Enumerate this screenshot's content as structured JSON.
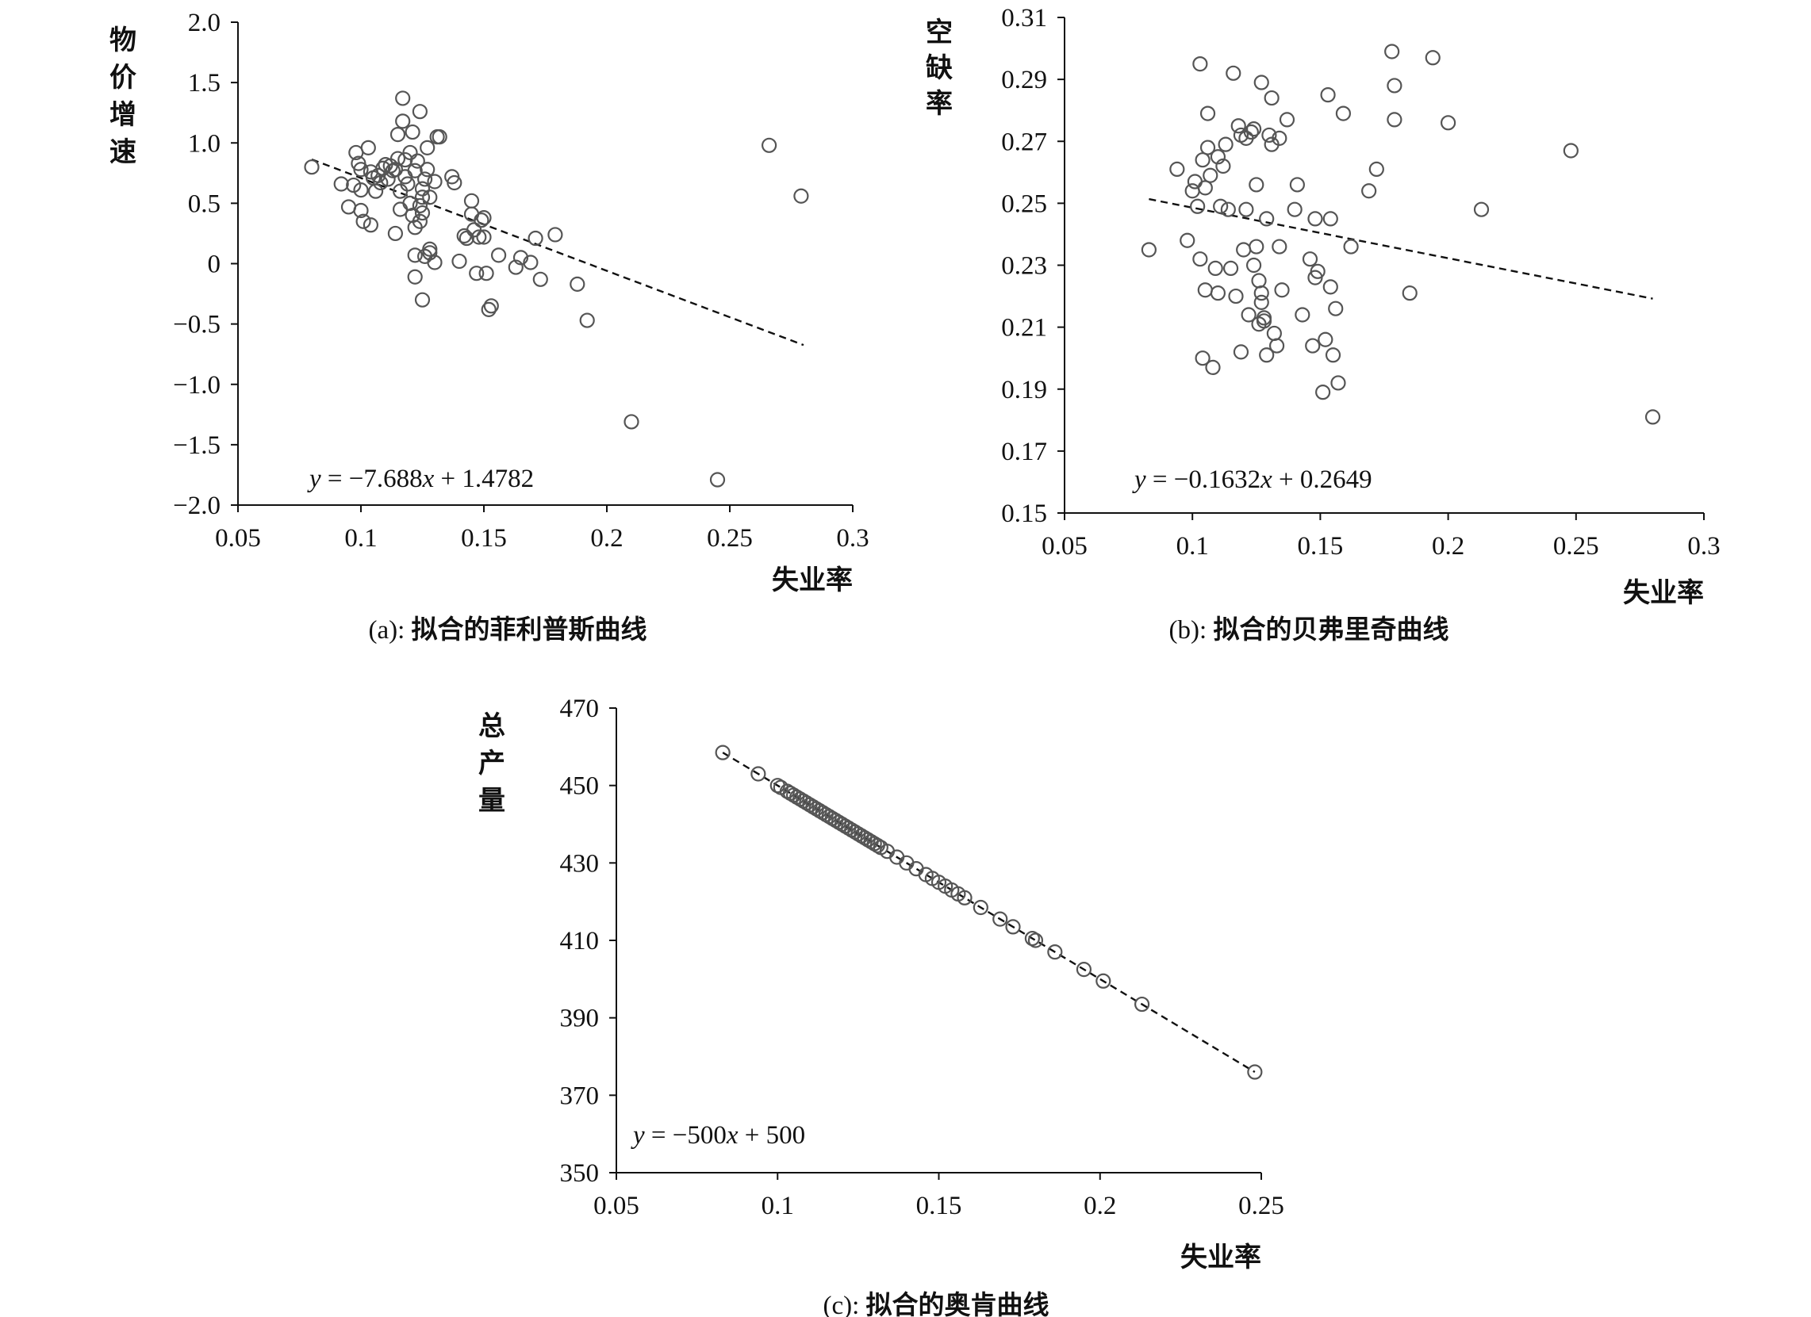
{
  "chart_data": [
    {
      "id": "a",
      "type": "scatter",
      "caption_prefix": "(a): ",
      "caption_title": "拟合的菲利普斯曲线",
      "xlabel": "失业率",
      "ylabel": "物价增速",
      "xlim": [
        0.05,
        0.3
      ],
      "ylim": [
        -2.0,
        2.0
      ],
      "xticks": [
        0.05,
        0.1,
        0.15,
        0.2,
        0.25,
        0.3
      ],
      "xtick_labels": [
        "0.05",
        "0.1",
        "0.15",
        "0.2",
        "0.25",
        "0.3"
      ],
      "yticks": [
        2.0,
        1.5,
        1.0,
        0.5,
        0,
        -0.5,
        -1.0,
        -1.5,
        -2.0
      ],
      "ytick_labels": [
        "2.0",
        "1.5",
        "1.0",
        "0.5",
        "0",
        "−0.5",
        "−1.0",
        "−1.5",
        "−2.0"
      ],
      "trendline": {
        "slope": -7.688,
        "intercept": 1.4782,
        "x_range": [
          0.08,
          0.28
        ]
      },
      "equation": {
        "y": "y",
        "mid": " = −7.688",
        "x": "x",
        "rest": " + 1.4782"
      },
      "points": [
        [
          0.08,
          0.8
        ],
        [
          0.092,
          0.66
        ],
        [
          0.095,
          0.47
        ],
        [
          0.097,
          0.65
        ],
        [
          0.098,
          0.92
        ],
        [
          0.099,
          0.83
        ],
        [
          0.1,
          0.78
        ],
        [
          0.1,
          0.61
        ],
        [
          0.1,
          0.44
        ],
        [
          0.101,
          0.35
        ],
        [
          0.103,
          0.96
        ],
        [
          0.104,
          0.76
        ],
        [
          0.104,
          0.32
        ],
        [
          0.105,
          0.71
        ],
        [
          0.106,
          0.6
        ],
        [
          0.107,
          0.73
        ],
        [
          0.108,
          0.67
        ],
        [
          0.109,
          0.79
        ],
        [
          0.11,
          0.82
        ],
        [
          0.111,
          0.7
        ],
        [
          0.112,
          0.81
        ],
        [
          0.113,
          0.77
        ],
        [
          0.114,
          0.78
        ],
        [
          0.114,
          0.25
        ],
        [
          0.115,
          0.87
        ],
        [
          0.115,
          1.07
        ],
        [
          0.116,
          0.6
        ],
        [
          0.116,
          0.45
        ],
        [
          0.117,
          1.18
        ],
        [
          0.117,
          1.37
        ],
        [
          0.118,
          0.86
        ],
        [
          0.118,
          0.72
        ],
        [
          0.119,
          0.66
        ],
        [
          0.12,
          0.92
        ],
        [
          0.12,
          0.5
        ],
        [
          0.121,
          0.4
        ],
        [
          0.121,
          1.09
        ],
        [
          0.122,
          0.77
        ],
        [
          0.122,
          0.3
        ],
        [
          0.122,
          0.07
        ],
        [
          0.122,
          -0.11
        ],
        [
          0.123,
          0.85
        ],
        [
          0.124,
          0.48
        ],
        [
          0.124,
          0.35
        ],
        [
          0.124,
          1.26
        ],
        [
          0.125,
          0.62
        ],
        [
          0.125,
          0.55
        ],
        [
          0.125,
          0.42
        ],
        [
          0.125,
          -0.3
        ],
        [
          0.126,
          0.06
        ],
        [
          0.126,
          0.7
        ],
        [
          0.127,
          0.78
        ],
        [
          0.127,
          0.96
        ],
        [
          0.128,
          0.55
        ],
        [
          0.128,
          0.12
        ],
        [
          0.128,
          0.09
        ],
        [
          0.13,
          0.01
        ],
        [
          0.13,
          0.68
        ],
        [
          0.131,
          1.05
        ],
        [
          0.132,
          1.05
        ],
        [
          0.137,
          0.72
        ],
        [
          0.138,
          0.67
        ],
        [
          0.14,
          0.02
        ],
        [
          0.142,
          0.23
        ],
        [
          0.143,
          0.21
        ],
        [
          0.145,
          0.52
        ],
        [
          0.145,
          0.41
        ],
        [
          0.146,
          0.28
        ],
        [
          0.147,
          -0.08
        ],
        [
          0.148,
          0.22
        ],
        [
          0.149,
          0.36
        ],
        [
          0.15,
          0.38
        ],
        [
          0.15,
          0.22
        ],
        [
          0.151,
          -0.08
        ],
        [
          0.152,
          -0.38
        ],
        [
          0.153,
          -0.35
        ],
        [
          0.156,
          0.07
        ],
        [
          0.163,
          -0.03
        ],
        [
          0.165,
          0.05
        ],
        [
          0.169,
          0.01
        ],
        [
          0.171,
          0.21
        ],
        [
          0.173,
          -0.13
        ],
        [
          0.179,
          0.24
        ],
        [
          0.188,
          -0.17
        ],
        [
          0.192,
          -0.47
        ],
        [
          0.21,
          -1.31
        ],
        [
          0.245,
          -1.79
        ],
        [
          0.266,
          0.98
        ],
        [
          0.279,
          0.56
        ]
      ]
    },
    {
      "id": "b",
      "type": "scatter",
      "caption_prefix": "(b): ",
      "caption_title": "拟合的贝弗里奇曲线",
      "xlabel": "失业率",
      "ylabel": "空缺率",
      "xlim": [
        0.05,
        0.3
      ],
      "ylim": [
        0.15,
        0.31
      ],
      "xticks": [
        0.05,
        0.1,
        0.15,
        0.2,
        0.25,
        0.3
      ],
      "xtick_labels": [
        "0.05",
        "0.1",
        "0.15",
        "0.2",
        "0.25",
        "0.3"
      ],
      "yticks": [
        0.31,
        0.29,
        0.27,
        0.25,
        0.23,
        0.21,
        0.19,
        0.17,
        0.15
      ],
      "ytick_labels": [
        "0.31",
        "0.29",
        "0.27",
        "0.25",
        "0.23",
        "0.21",
        "0.19",
        "0.17",
        "0.15"
      ],
      "trendline": {
        "slope": -0.1632,
        "intercept": 0.2649,
        "x_range": [
          0.083,
          0.28
        ]
      },
      "equation": {
        "y": "y",
        "mid": " = −0.1632",
        "x": "x",
        "rest": " + 0.2649"
      },
      "points": [
        [
          0.083,
          0.235
        ],
        [
          0.094,
          0.261
        ],
        [
          0.098,
          0.238
        ],
        [
          0.1,
          0.254
        ],
        [
          0.101,
          0.257
        ],
        [
          0.102,
          0.249
        ],
        [
          0.103,
          0.232
        ],
        [
          0.103,
          0.295
        ],
        [
          0.104,
          0.264
        ],
        [
          0.104,
          0.2
        ],
        [
          0.105,
          0.255
        ],
        [
          0.105,
          0.222
        ],
        [
          0.106,
          0.268
        ],
        [
          0.106,
          0.279
        ],
        [
          0.107,
          0.259
        ],
        [
          0.108,
          0.197
        ],
        [
          0.109,
          0.229
        ],
        [
          0.11,
          0.265
        ],
        [
          0.11,
          0.221
        ],
        [
          0.111,
          0.249
        ],
        [
          0.112,
          0.262
        ],
        [
          0.113,
          0.269
        ],
        [
          0.114,
          0.248
        ],
        [
          0.115,
          0.229
        ],
        [
          0.116,
          0.292
        ],
        [
          0.117,
          0.22
        ],
        [
          0.118,
          0.275
        ],
        [
          0.119,
          0.272
        ],
        [
          0.119,
          0.202
        ],
        [
          0.12,
          0.235
        ],
        [
          0.121,
          0.248
        ],
        [
          0.121,
          0.271
        ],
        [
          0.122,
          0.214
        ],
        [
          0.123,
          0.273
        ],
        [
          0.124,
          0.274
        ],
        [
          0.124,
          0.23
        ],
        [
          0.125,
          0.236
        ],
        [
          0.125,
          0.256
        ],
        [
          0.126,
          0.225
        ],
        [
          0.126,
          0.211
        ],
        [
          0.127,
          0.289
        ],
        [
          0.127,
          0.221
        ],
        [
          0.127,
          0.218
        ],
        [
          0.128,
          0.212
        ],
        [
          0.128,
          0.213
        ],
        [
          0.129,
          0.245
        ],
        [
          0.129,
          0.201
        ],
        [
          0.13,
          0.272
        ],
        [
          0.131,
          0.284
        ],
        [
          0.131,
          0.269
        ],
        [
          0.132,
          0.208
        ],
        [
          0.133,
          0.204
        ],
        [
          0.134,
          0.236
        ],
        [
          0.134,
          0.271
        ],
        [
          0.135,
          0.222
        ],
        [
          0.137,
          0.277
        ],
        [
          0.14,
          0.248
        ],
        [
          0.141,
          0.256
        ],
        [
          0.143,
          0.214
        ],
        [
          0.146,
          0.232
        ],
        [
          0.147,
          0.204
        ],
        [
          0.148,
          0.226
        ],
        [
          0.148,
          0.245
        ],
        [
          0.149,
          0.228
        ],
        [
          0.151,
          0.189
        ],
        [
          0.152,
          0.206
        ],
        [
          0.153,
          0.285
        ],
        [
          0.154,
          0.245
        ],
        [
          0.154,
          0.223
        ],
        [
          0.155,
          0.201
        ],
        [
          0.156,
          0.216
        ],
        [
          0.157,
          0.192
        ],
        [
          0.159,
          0.279
        ],
        [
          0.162,
          0.236
        ],
        [
          0.169,
          0.254
        ],
        [
          0.172,
          0.261
        ],
        [
          0.178,
          0.299
        ],
        [
          0.179,
          0.288
        ],
        [
          0.179,
          0.277
        ],
        [
          0.185,
          0.221
        ],
        [
          0.194,
          0.297
        ],
        [
          0.2,
          0.276
        ],
        [
          0.213,
          0.248
        ],
        [
          0.248,
          0.267
        ],
        [
          0.28,
          0.181
        ]
      ]
    },
    {
      "id": "c",
      "type": "scatter",
      "caption_prefix": "(c): ",
      "caption_title": "拟合的奥肯曲线",
      "xlabel": "失业率",
      "ylabel": "总产量",
      "xlim": [
        0.05,
        0.25
      ],
      "ylim": [
        350,
        470
      ],
      "xticks": [
        0.05,
        0.1,
        0.15,
        0.2,
        0.25
      ],
      "xtick_labels": [
        "0.05",
        "0.1",
        "0.15",
        "0.2",
        "0.25"
      ],
      "yticks": [
        470,
        450,
        430,
        410,
        390,
        370,
        350
      ],
      "ytick_labels": [
        "470",
        "450",
        "430",
        "410",
        "390",
        "370",
        "350"
      ],
      "trendline": {
        "slope": -500,
        "intercept": 500,
        "x_range": [
          0.083,
          0.248
        ]
      },
      "equation": {
        "y": "y",
        "mid": " = −500",
        "x": "x",
        "rest": " + 500"
      },
      "points_x": [
        0.083,
        0.094,
        0.1,
        0.101,
        0.103,
        0.104,
        0.105,
        0.106,
        0.107,
        0.108,
        0.109,
        0.11,
        0.111,
        0.112,
        0.113,
        0.114,
        0.115,
        0.116,
        0.117,
        0.118,
        0.119,
        0.12,
        0.121,
        0.122,
        0.123,
        0.124,
        0.125,
        0.126,
        0.127,
        0.128,
        0.129,
        0.13,
        0.131,
        0.132,
        0.134,
        0.137,
        0.14,
        0.143,
        0.146,
        0.148,
        0.15,
        0.152,
        0.154,
        0.156,
        0.158,
        0.163,
        0.169,
        0.173,
        0.179,
        0.18,
        0.186,
        0.195,
        0.201,
        0.213,
        0.248
      ]
    }
  ]
}
